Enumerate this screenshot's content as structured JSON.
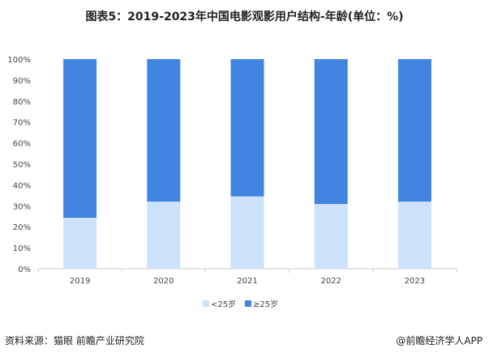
{
  "title": "图表5：2019-2023年中国电影观影用户结构-年龄(单位：%)",
  "source": "资料来源：猫眼 前瞻产业研究院",
  "credit": "@前瞻经济学人APP",
  "chart_data": {
    "type": "bar",
    "stacked": true,
    "title": "图表5：2019-2023年中国电影观影用户结构-年龄(单位：%)",
    "categories": [
      "2019",
      "2020",
      "2021",
      "2022",
      "2023"
    ],
    "series": [
      {
        "name": "<25岁",
        "values": [
          24.3,
          32.0,
          34.5,
          30.9,
          32.0
        ],
        "color": "#cfe2fb"
      },
      {
        "name": "≥25岁",
        "values": [
          75.7,
          68.0,
          65.5,
          69.1,
          68.0
        ],
        "color": "#4285e0"
      }
    ],
    "yticks": [
      "0%",
      "10%",
      "20%",
      "30%",
      "40%",
      "50%",
      "60%",
      "70%",
      "80%",
      "90%",
      "100%"
    ],
    "ylim": [
      0,
      100
    ],
    "grid": false,
    "legend": "bottom"
  }
}
